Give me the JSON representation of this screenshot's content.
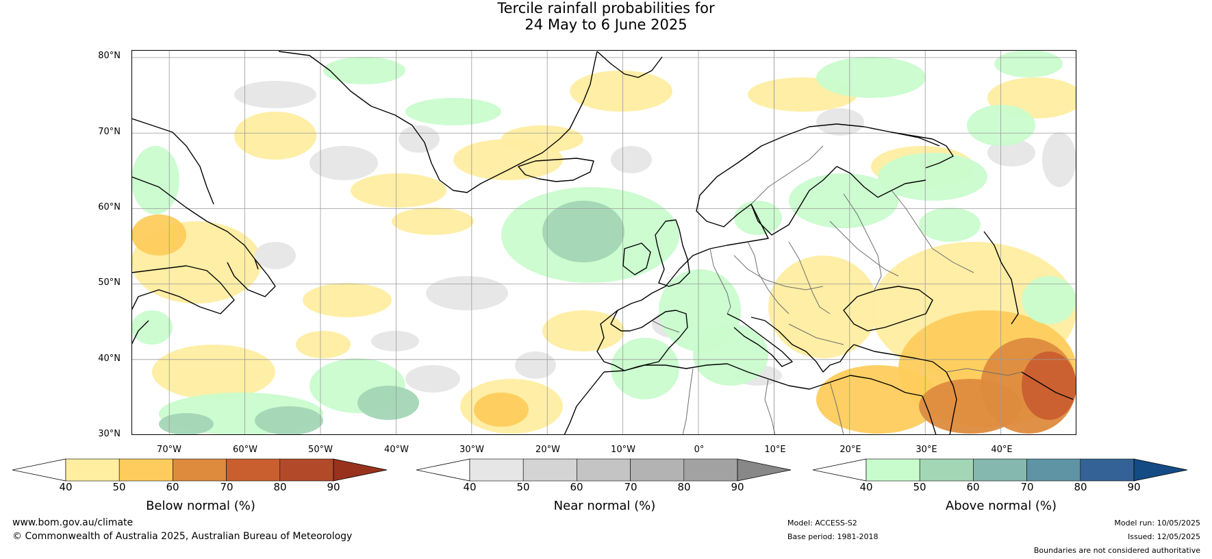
{
  "title": {
    "line1": "Tercile rainfall probabilities for",
    "line2": "24 May to 6 June 2025"
  },
  "map": {
    "lat_labels": [
      "80°N",
      "70°N",
      "60°N",
      "50°N",
      "40°N",
      "30°N"
    ],
    "lat_values": [
      80,
      70,
      60,
      50,
      40,
      30
    ],
    "lon_labels": [
      "70°W",
      "60°W",
      "50°W",
      "40°W",
      "30°W",
      "20°W",
      "10°W",
      "0°",
      "10°E",
      "20°E",
      "30°E",
      "40°E"
    ],
    "lon_values": [
      -70,
      -60,
      -50,
      -40,
      -30,
      -20,
      -10,
      0,
      10,
      20,
      30,
      40
    ],
    "extent": {
      "lon_min": -75,
      "lon_max": 50,
      "lat_min": 30,
      "lat_max": 81
    }
  },
  "colorbars": [
    {
      "label": "Below normal (%)",
      "ticks": [
        "40",
        "50",
        "60",
        "70",
        "80",
        "90"
      ],
      "colors": [
        "#ffffff",
        "#ffeda0",
        "#fecc5c",
        "#de8b3e",
        "#c95f2f",
        "#b24a29",
        "#99321d"
      ]
    },
    {
      "label": "Near normal (%)",
      "ticks": [
        "40",
        "50",
        "60",
        "70",
        "80",
        "90"
      ],
      "colors": [
        "#ffffff",
        "#e6e6e6",
        "#d4d4d4",
        "#c4c4c4",
        "#b3b3b3",
        "#a2a2a2",
        "#888888"
      ]
    },
    {
      "label": "Above normal (%)",
      "ticks": [
        "40",
        "50",
        "60",
        "70",
        "80",
        "90"
      ],
      "colors": [
        "#ffffff",
        "#c9fccd",
        "#a3d6b5",
        "#85b8ae",
        "#5e94a3",
        "#346296",
        "#144b84"
      ]
    }
  ],
  "footer": {
    "website": "www.bom.gov.au/climate",
    "copyright": "© Commonwealth of Australia 2025, Australian Bureau of Meteorology",
    "model": "Model: ACCESS-S2",
    "base_period": "Base period: 1981-2018",
    "model_run": "Model run: 10/05/2025",
    "issued": "Issued: 12/05/2025",
    "disclaimer": "Boundaries are not considered authoritative"
  }
}
